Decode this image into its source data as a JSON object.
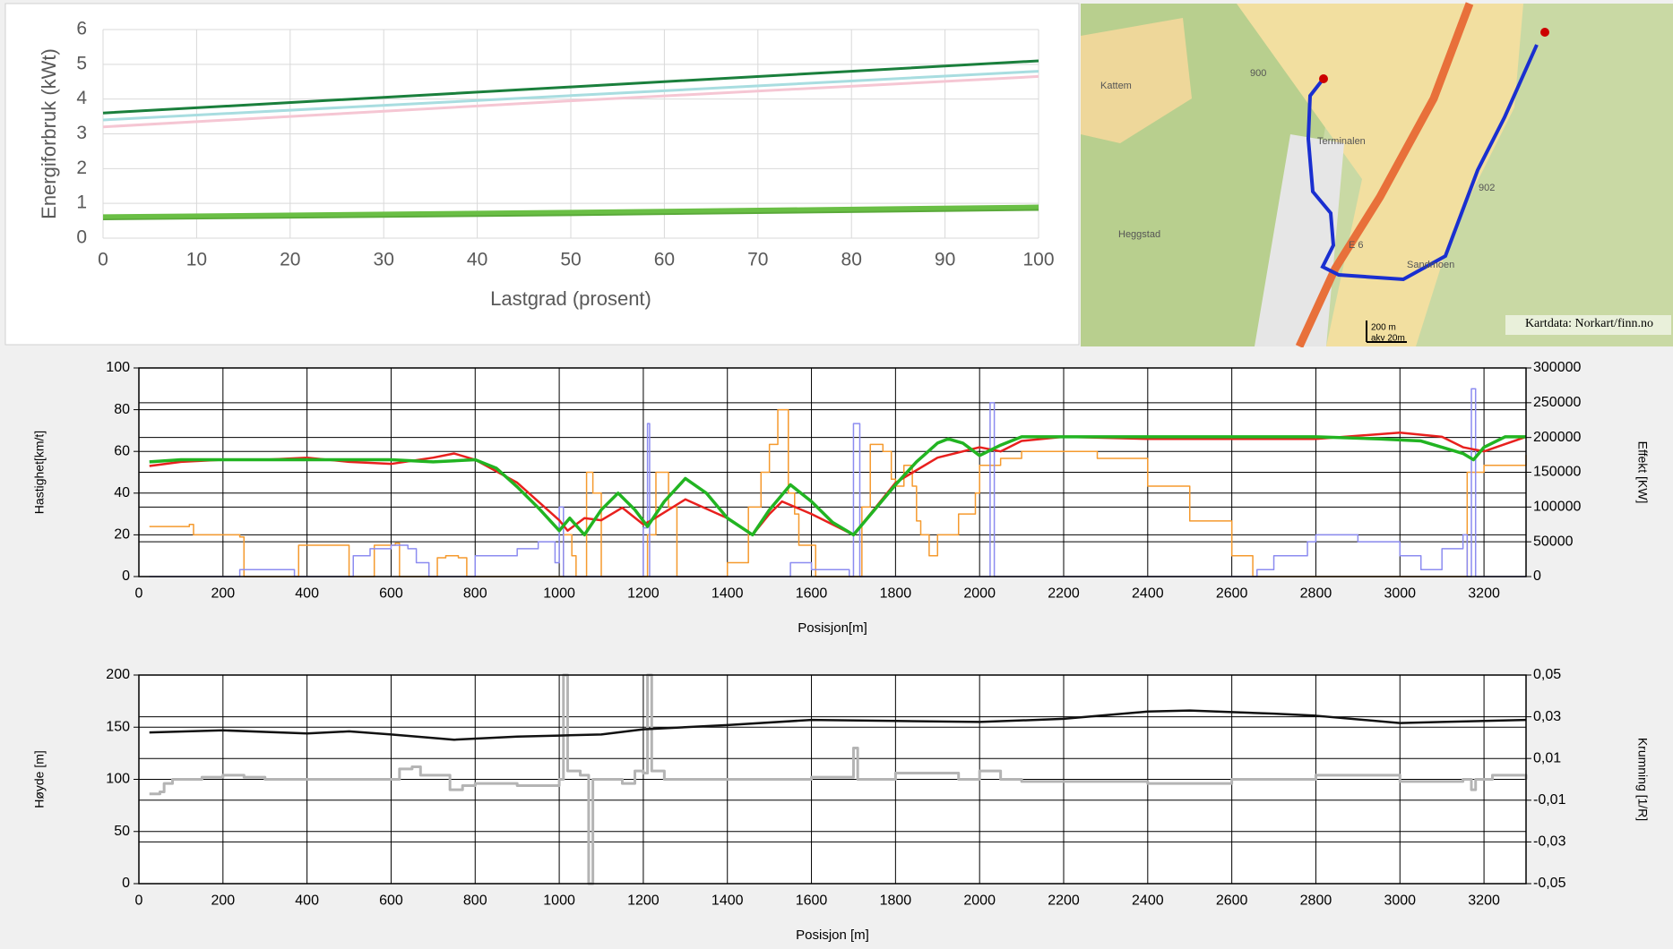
{
  "chart_data": [
    {
      "type": "line",
      "ylabel": "Energiforbruk (kWt)",
      "xlabel": "Lastgrad (prosent)",
      "xlim": [
        0,
        100
      ],
      "ylim": [
        0,
        6
      ],
      "xticks": [
        0,
        10,
        20,
        30,
        40,
        50,
        60,
        70,
        80,
        90,
        100
      ],
      "yticks": [
        0,
        1,
        2,
        3,
        4,
        5,
        6
      ],
      "grid": true,
      "series": [
        {
          "color": "#a8dde0",
          "x": [
            0,
            50,
            100
          ],
          "values": [
            3.4,
            4.1,
            4.8
          ]
        },
        {
          "color": "#f5c6d3",
          "x": [
            0,
            50,
            100
          ],
          "values": [
            3.2,
            3.95,
            4.65
          ]
        },
        {
          "color": "#1a7f3c",
          "x": [
            0,
            50,
            100
          ],
          "values": [
            3.6,
            4.35,
            5.1
          ]
        },
        {
          "color": "#5aa93a",
          "x": [
            0,
            50,
            100
          ],
          "values": [
            0.58,
            0.7,
            0.85
          ]
        },
        {
          "color": "#6abf45",
          "x": [
            0,
            50,
            100
          ],
          "values": [
            0.62,
            0.75,
            0.9
          ]
        }
      ]
    },
    {
      "type": "line",
      "ylabel": "Hastighet[km/t]",
      "y2label": "Effekt [KW]",
      "xlabel": "Posisjon[m]",
      "xlim": [
        0,
        3300
      ],
      "ylim": [
        0,
        100
      ],
      "y2lim": [
        0,
        300000
      ],
      "xticks": [
        0,
        200,
        400,
        600,
        800,
        1000,
        1200,
        1400,
        1600,
        1800,
        2000,
        2200,
        2400,
        2600,
        2800,
        3000,
        3200
      ],
      "yticks": [
        0,
        20,
        40,
        60,
        80,
        100
      ],
      "y2ticks": [
        0,
        50000,
        100000,
        150000,
        200000,
        250000,
        300000
      ],
      "grid": true,
      "series": [
        {
          "color": "#f59a2e",
          "axis": "y2",
          "step": true,
          "x": [
            25,
            100,
            120,
            130,
            240,
            250,
            370,
            380,
            490,
            500,
            560,
            610,
            620,
            710,
            730,
            760,
            780,
            1010,
            1030,
            1040,
            1065,
            1080,
            1100,
            1210,
            1230,
            1260,
            1280,
            1400,
            1450,
            1480,
            1500,
            1520,
            1545,
            1560,
            1570,
            1610,
            1720,
            1740,
            1770,
            1790,
            1800,
            1820,
            1840,
            1850,
            1860,
            1880,
            1900,
            1950,
            1990,
            2000,
            2050,
            2100,
            2200,
            2280,
            2400,
            2500,
            2600,
            2650,
            3160,
            3200,
            3300
          ],
          "values": [
            72000,
            72000,
            75000,
            60000,
            57000,
            0,
            0,
            45000,
            45000,
            0,
            45000,
            48000,
            0,
            27000,
            30000,
            27000,
            0,
            60000,
            30000,
            0,
            150000,
            120000,
            0,
            60000,
            150000,
            100000,
            0,
            20000,
            100000,
            150000,
            190000,
            240000,
            120000,
            90000,
            45000,
            0,
            100000,
            190000,
            180000,
            140000,
            130000,
            160000,
            130000,
            80000,
            60000,
            30000,
            60000,
            90000,
            120000,
            160000,
            170000,
            180000,
            180000,
            170000,
            130000,
            80000,
            30000,
            0,
            150000,
            160000,
            175000
          ]
        },
        {
          "color": "#8c8cf0",
          "axis": "y2",
          "step": true,
          "x": [
            25,
            240,
            370,
            510,
            550,
            600,
            640,
            660,
            690,
            800,
            900,
            950,
            990,
            1000,
            1010,
            1200,
            1210,
            1215,
            1550,
            1600,
            1690,
            1700,
            1715,
            2025,
            2035,
            2660,
            2700,
            2780,
            2800,
            2900,
            3000,
            3050,
            3100,
            3150,
            3160,
            3170,
            3180,
            3300
          ],
          "values": [
            0,
            10000,
            0,
            30000,
            40000,
            45000,
            40000,
            20000,
            0,
            30000,
            40000,
            50000,
            20000,
            100000,
            0,
            70000,
            220000,
            0,
            20000,
            10000,
            0,
            220000,
            0,
            250000,
            0,
            10000,
            30000,
            50000,
            60000,
            50000,
            30000,
            10000,
            40000,
            60000,
            0,
            270000,
            0,
            0
          ]
        },
        {
          "color": "#e8201e",
          "x": [
            25,
            100,
            200,
            300,
            400,
            500,
            600,
            700,
            750,
            800,
            900,
            1000,
            1020,
            1060,
            1100,
            1150,
            1200,
            1220,
            1300,
            1400,
            1460,
            1500,
            1530,
            1600,
            1700,
            1800,
            1900,
            2000,
            2050,
            2100,
            2200,
            2400,
            2600,
            2800,
            3000,
            3100,
            3150,
            3200,
            3300
          ],
          "values": [
            53,
            55,
            56,
            56,
            57,
            55,
            54,
            57,
            59,
            56,
            45,
            27,
            22,
            28,
            27,
            33,
            25,
            27,
            37,
            28,
            20,
            30,
            36,
            30,
            20,
            45,
            57,
            62,
            60,
            65,
            67,
            66,
            66,
            66,
            69,
            67,
            62,
            60,
            67
          ]
        },
        {
          "color": "#22b422",
          "x": [
            25,
            100,
            200,
            300,
            400,
            500,
            600,
            700,
            800,
            850,
            900,
            950,
            1000,
            1025,
            1060,
            1100,
            1140,
            1180,
            1210,
            1250,
            1300,
            1350,
            1400,
            1460,
            1500,
            1550,
            1600,
            1650,
            1700,
            1750,
            1800,
            1850,
            1900,
            1925,
            1960,
            2000,
            2050,
            2100,
            2200,
            2400,
            2600,
            2800,
            2950,
            3050,
            3150,
            3175,
            3200,
            3250,
            3300
          ],
          "values": [
            55,
            56,
            56,
            56,
            56,
            56,
            56,
            55,
            56,
            52,
            43,
            33,
            22,
            28,
            20,
            32,
            40,
            32,
            24,
            36,
            47,
            40,
            28,
            20,
            32,
            44,
            36,
            26,
            20,
            32,
            44,
            55,
            64,
            66,
            64,
            58,
            63,
            67,
            67,
            67,
            67,
            67,
            66,
            65,
            59,
            56,
            62,
            67,
            67
          ]
        }
      ]
    },
    {
      "type": "line",
      "ylabel": "Høyde [m]",
      "y2label": "Krumning [1/R]",
      "xlabel": "Posisjon [m]",
      "xlim": [
        0,
        3300
      ],
      "ylim": [
        0,
        200
      ],
      "y2lim": [
        -0.05,
        0.05
      ],
      "xticks": [
        0,
        200,
        400,
        600,
        800,
        1000,
        1200,
        1400,
        1600,
        1800,
        2000,
        2200,
        2400,
        2600,
        2800,
        3000,
        3200
      ],
      "yticks": [
        0,
        50,
        100,
        150,
        200
      ],
      "y2ticks": [
        {
          "value": -0.05,
          "label": "-0,05"
        },
        {
          "value": -0.03,
          "label": "-0,03"
        },
        {
          "value": -0.01,
          "label": "-0,01"
        },
        {
          "value": 0.01,
          "label": "0,01"
        },
        {
          "value": 0.03,
          "label": "0,03"
        },
        {
          "value": 0.05,
          "label": "0,05"
        }
      ],
      "grid": true,
      "series": [
        {
          "color": "#b4b4b4",
          "axis": "y2",
          "step": true,
          "x": [
            25,
            50,
            60,
            80,
            150,
            200,
            250,
            300,
            620,
            650,
            670,
            740,
            770,
            800,
            900,
            1000,
            1010,
            1020,
            1050,
            1070,
            1080,
            1150,
            1180,
            1200,
            1210,
            1220,
            1250,
            1600,
            1700,
            1710,
            1800,
            1950,
            2000,
            2050,
            2100,
            2400,
            2600,
            2800,
            3000,
            3150,
            3170,
            3180,
            3220,
            3300
          ],
          "values": [
            -0.007,
            -0.006,
            -0.002,
            0,
            0.001,
            0.002,
            0.001,
            0,
            0.005,
            0.006,
            0.002,
            -0.005,
            -0.003,
            -0.002,
            -0.003,
            0,
            0.05,
            0.004,
            0.002,
            -0.05,
            0,
            -0.002,
            0.004,
            0.003,
            0.05,
            0.004,
            0,
            0.001,
            0.015,
            0,
            0.003,
            0,
            0.004,
            0,
            -0.001,
            -0.002,
            0,
            0.002,
            -0.001,
            0,
            -0.005,
            0,
            0.002,
            0
          ]
        },
        {
          "color": "#111111",
          "x": [
            25,
            200,
            400,
            500,
            600,
            750,
            900,
            1000,
            1100,
            1200,
            1400,
            1600,
            1800,
            2000,
            2200,
            2400,
            2500,
            2700,
            2800,
            3000,
            3100,
            3300
          ],
          "values": [
            145,
            147,
            144,
            146,
            143,
            138,
            141,
            142,
            143,
            148,
            152,
            157,
            156,
            155,
            158,
            165,
            166,
            163,
            161,
            154,
            155,
            157
          ]
        }
      ]
    }
  ],
  "map": {
    "labels": [
      "Kattem",
      "Heggstad",
      "Terminalen",
      "Sandmoen",
      "E 6",
      "900",
      "902"
    ],
    "scale": [
      "200 m",
      "akv 20m"
    ],
    "credit": "Kartdata: Norkart/finn.no"
  }
}
